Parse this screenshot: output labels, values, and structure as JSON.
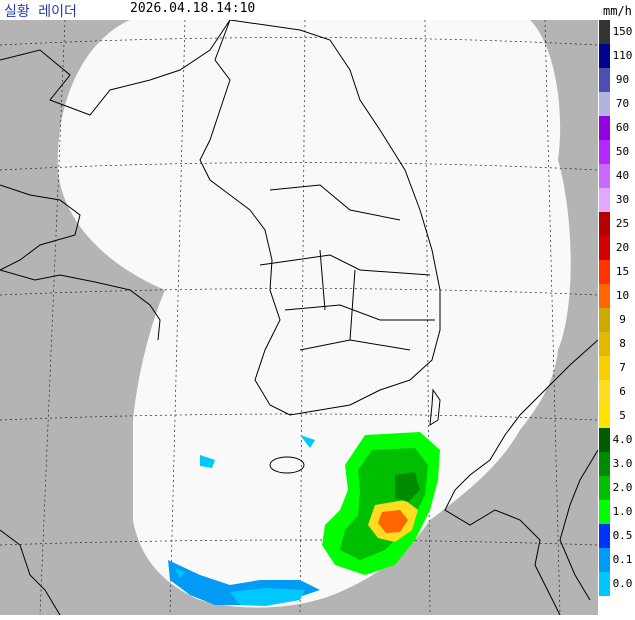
{
  "header": {
    "title": "실황 레이더",
    "timestamp": "2026.04.18.14:10",
    "unit": "mm/h"
  },
  "legend": {
    "labels": [
      "150",
      "110",
      "90",
      "70",
      "60",
      "50",
      "40",
      "30",
      "25",
      "20",
      "15",
      "10",
      "9",
      "8",
      "7",
      "6",
      "5",
      "4.0",
      "3.0",
      "2.0",
      "1.0",
      "0.5",
      "0.1",
      "0.0"
    ],
    "colors": [
      "#333333",
      "#000390",
      "#4c4eb1",
      "#b3b4de",
      "#9300e4",
      "#b329ff",
      "#c969ff",
      "#e0a9ff",
      "#b40000",
      "#d20000",
      "#ff3200",
      "#ff6600",
      "#ccaa00",
      "#e0b900",
      "#f9cd00",
      "#ffdc1f",
      "#ffe100",
      "#005a00",
      "#008c00",
      "#00be00",
      "#00ff00",
      "#0033f5",
      "#009bf5",
      "#00c8ff"
    ]
  },
  "map": {
    "outside_color": "#b4b4b4",
    "coverage_color": "#f9f9f9",
    "precipitation": {
      "regions": [
        "south sea",
        "southwest sea"
      ],
      "max_intensity_mm_h": 10
    }
  }
}
